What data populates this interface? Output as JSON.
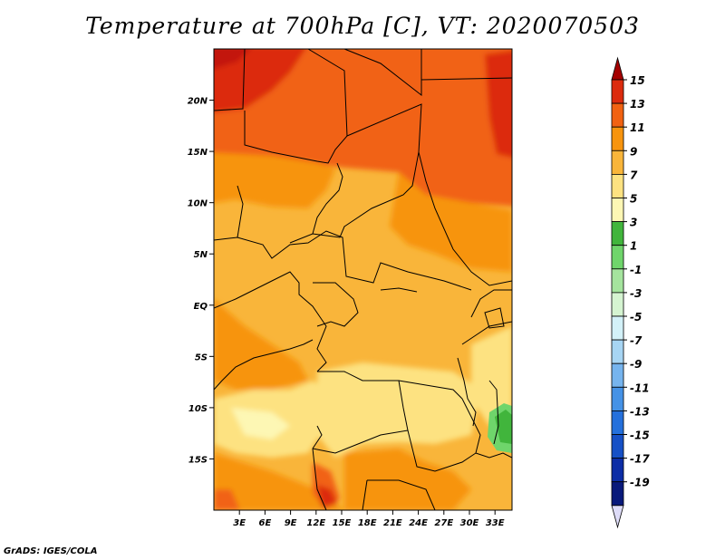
{
  "title": "Temperature at 700hPa [C], VT: 2020070503",
  "credit": "GrADS: IGES/COLA",
  "map": {
    "lon_range": [
      0,
      35
    ],
    "lat_range": [
      -20,
      25
    ],
    "lon_ticks": [
      "3E",
      "6E",
      "9E",
      "12E",
      "15E",
      "18E",
      "21E",
      "24E",
      "27E",
      "30E",
      "33E"
    ],
    "lon_tick_values": [
      3,
      6,
      9,
      12,
      15,
      18,
      21,
      24,
      27,
      30,
      33
    ],
    "lat_ticks": [
      "20N",
      "15N",
      "10N",
      "5N",
      "EQ",
      "5S",
      "10S",
      "15S"
    ],
    "lat_tick_values": [
      20,
      15,
      10,
      5,
      0,
      -5,
      -10,
      -15
    ]
  },
  "colorbar": {
    "labels": [
      "15",
      "13",
      "11",
      "9",
      "7",
      "5",
      "3",
      "1",
      "-1",
      "-3",
      "-5",
      "-7",
      "-9",
      "-11",
      "-13",
      "-15",
      "-17",
      "-19"
    ],
    "colors": [
      "#a50000",
      "#dc2b0e",
      "#f16212",
      "#f7940e",
      "#f9b53a",
      "#fde281",
      "#fdf7b4",
      "#41b53c",
      "#6fd56b",
      "#a5e49e",
      "#d5f4d1",
      "#d3f1f8",
      "#a7d5f3",
      "#76b4ee",
      "#4592e6",
      "#2470dc",
      "#1650c6",
      "#0c2da6",
      "#08197b",
      "#dedcf8"
    ]
  }
}
